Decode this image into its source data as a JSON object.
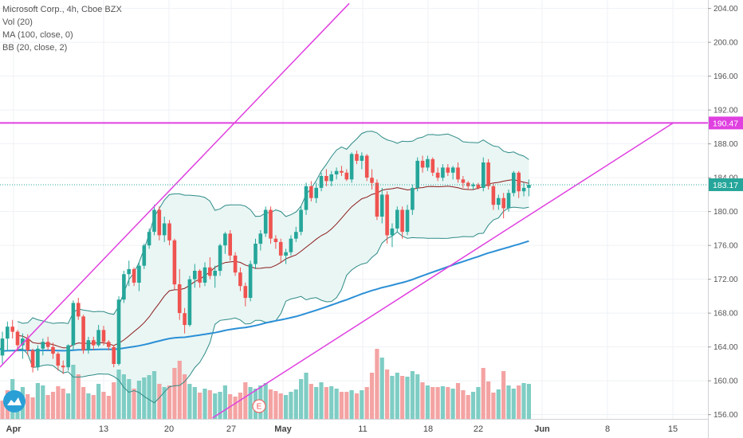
{
  "legend": {
    "title": "Microsoft Corp., 4h, Cboe BZX",
    "vol": "Vol (20)",
    "ma": "MA (100, close, 0)",
    "bb": "BB (20, close, 2)"
  },
  "colors": {
    "up": "#26a69a",
    "down": "#ef5350",
    "vol_up": "#7fcdc4",
    "vol_down": "#f4a3a3",
    "ma100": "#2b8fd6",
    "bb_mid": "#8b1a1a",
    "bb_band": "#2e8b87",
    "bb_fill": "#e9f6f4",
    "trend": "#e040e0",
    "grid": "#eef1f5",
    "last_price": "#26a69a"
  },
  "chart_data": {
    "type": "candlestick",
    "title": "Microsoft Corp., 4h, Cboe BZX",
    "ylim": [
      155.5,
      205
    ],
    "y_ticks": [
      "156.00",
      "160.00",
      "164.00",
      "168.00",
      "172.00",
      "176.00",
      "180.00",
      "184.00",
      "188.00",
      "192.00",
      "196.00",
      "200.00",
      "204.00"
    ],
    "x_ticks": [
      "Apr",
      "13",
      "20",
      "27",
      "May",
      "11",
      "18",
      "22",
      "Jun",
      "8",
      "15"
    ],
    "price_labels": {
      "resistance": "190.47",
      "last": "183.17"
    },
    "event_marker": "E",
    "candles": [
      [
        163.0,
        165.8,
        162.0,
        165.0
      ],
      [
        165.0,
        167.0,
        163.5,
        166.4
      ],
      [
        166.4,
        167.2,
        165.0,
        165.8
      ],
      [
        165.8,
        166.0,
        163.5,
        164.2
      ],
      [
        164.2,
        165.6,
        162.6,
        165.0
      ],
      [
        165.0,
        165.5,
        163.0,
        163.6
      ],
      [
        163.6,
        163.8,
        161.0,
        161.6
      ],
      [
        161.6,
        164.2,
        161.2,
        163.8
      ],
      [
        163.8,
        165.0,
        163.0,
        164.6
      ],
      [
        164.6,
        165.2,
        163.6,
        164.0
      ],
      [
        164.0,
        164.5,
        162.6,
        163.2
      ],
      [
        163.2,
        163.4,
        161.2,
        161.8
      ],
      [
        161.8,
        162.4,
        160.8,
        161.6
      ],
      [
        161.6,
        164.3,
        161.2,
        164.2
      ],
      [
        164.2,
        169.5,
        163.6,
        169.2
      ],
      [
        169.2,
        169.8,
        167.2,
        167.6
      ],
      [
        167.6,
        167.8,
        163.2,
        163.6
      ],
      [
        163.6,
        165.2,
        163.2,
        164.8
      ],
      [
        164.8,
        165.2,
        163.6,
        164.2
      ],
      [
        164.2,
        166.6,
        164.0,
        166.0
      ],
      [
        166.0,
        166.5,
        164.2,
        164.6
      ],
      [
        164.6,
        164.8,
        163.6,
        164.0
      ],
      [
        164.0,
        164.2,
        161.6,
        162.0
      ],
      [
        162.0,
        170.0,
        161.8,
        169.6
      ],
      [
        169.6,
        173.0,
        169.2,
        172.6
      ],
      [
        172.6,
        174.2,
        171.2,
        173.2
      ],
      [
        173.2,
        173.4,
        171.2,
        171.6
      ],
      [
        171.6,
        174.0,
        170.6,
        173.6
      ],
      [
        173.6,
        176.2,
        173.2,
        176.0
      ],
      [
        176.0,
        178.0,
        175.6,
        177.6
      ],
      [
        177.6,
        180.8,
        177.2,
        180.2
      ],
      [
        180.2,
        180.6,
        176.6,
        177.2
      ],
      [
        177.2,
        179.4,
        176.4,
        178.6
      ],
      [
        178.6,
        179.0,
        176.0,
        176.6
      ],
      [
        176.6,
        176.8,
        170.8,
        171.4
      ],
      [
        171.4,
        173.2,
        167.2,
        168.0
      ],
      [
        168.0,
        168.6,
        165.6,
        166.6
      ],
      [
        166.6,
        172.4,
        166.4,
        172.0
      ],
      [
        172.0,
        173.8,
        171.0,
        173.0
      ],
      [
        173.0,
        173.2,
        171.0,
        171.6
      ],
      [
        171.6,
        174.0,
        171.2,
        173.4
      ],
      [
        173.4,
        174.6,
        172.0,
        172.4
      ],
      [
        172.4,
        173.6,
        171.0,
        173.0
      ],
      [
        173.0,
        176.2,
        172.4,
        176.0
      ],
      [
        176.0,
        177.6,
        175.0,
        177.4
      ],
      [
        177.4,
        177.8,
        174.2,
        174.8
      ],
      [
        174.8,
        175.2,
        172.4,
        172.8
      ],
      [
        172.8,
        173.4,
        170.6,
        171.2
      ],
      [
        171.2,
        171.6,
        168.8,
        169.8
      ],
      [
        169.8,
        174.2,
        169.4,
        173.8
      ],
      [
        173.8,
        176.8,
        173.2,
        176.2
      ],
      [
        176.2,
        177.8,
        175.4,
        177.4
      ],
      [
        177.4,
        180.6,
        177.0,
        180.2
      ],
      [
        180.2,
        180.6,
        176.2,
        176.8
      ],
      [
        176.8,
        177.2,
        175.6,
        176.4
      ],
      [
        176.4,
        176.8,
        174.0,
        174.8
      ],
      [
        174.8,
        175.6,
        173.8,
        175.2
      ],
      [
        175.2,
        177.2,
        174.8,
        176.8
      ],
      [
        176.8,
        178.2,
        176.4,
        177.6
      ],
      [
        177.6,
        180.6,
        177.2,
        180.2
      ],
      [
        180.2,
        183.4,
        179.6,
        183.0
      ],
      [
        183.0,
        183.6,
        181.2,
        181.6
      ],
      [
        181.6,
        183.4,
        181.0,
        182.8
      ],
      [
        182.8,
        184.6,
        182.4,
        184.2
      ],
      [
        184.2,
        185.0,
        183.0,
        183.6
      ],
      [
        183.6,
        184.8,
        183.0,
        184.4
      ],
      [
        184.4,
        185.2,
        183.8,
        184.8
      ],
      [
        184.8,
        185.4,
        184.2,
        184.6
      ],
      [
        184.6,
        185.0,
        183.6,
        183.8
      ],
      [
        183.8,
        187.0,
        183.4,
        186.8
      ],
      [
        186.8,
        187.2,
        185.6,
        186.0
      ],
      [
        186.0,
        187.0,
        185.0,
        186.6
      ],
      [
        186.6,
        186.8,
        183.6,
        184.0
      ],
      [
        184.0,
        185.0,
        182.6,
        183.4
      ],
      [
        183.4,
        183.8,
        179.0,
        179.4
      ],
      [
        179.4,
        182.8,
        178.6,
        182.0
      ],
      [
        182.0,
        182.4,
        176.2,
        177.2
      ],
      [
        177.2,
        178.6,
        175.8,
        178.0
      ],
      [
        178.0,
        180.6,
        177.6,
        180.2
      ],
      [
        180.2,
        180.6,
        176.8,
        177.6
      ],
      [
        177.6,
        180.8,
        177.2,
        180.2
      ],
      [
        180.2,
        183.2,
        179.6,
        182.8
      ],
      [
        182.8,
        186.4,
        182.4,
        186.0
      ],
      [
        186.0,
        186.6,
        184.6,
        185.2
      ],
      [
        185.2,
        186.6,
        184.8,
        186.2
      ],
      [
        186.2,
        186.4,
        184.2,
        184.6
      ],
      [
        184.6,
        185.2,
        183.6,
        184.0
      ],
      [
        184.0,
        185.6,
        183.6,
        185.2
      ],
      [
        185.2,
        185.6,
        184.2,
        184.6
      ],
      [
        184.6,
        185.4,
        183.8,
        185.2
      ],
      [
        185.2,
        185.8,
        183.4,
        183.8
      ],
      [
        183.8,
        184.2,
        182.8,
        183.4
      ],
      [
        183.4,
        183.6,
        182.6,
        183.0
      ],
      [
        183.0,
        183.4,
        182.6,
        183.2
      ],
      [
        183.2,
        183.4,
        182.6,
        182.8
      ],
      [
        182.8,
        186.4,
        182.4,
        185.8
      ],
      [
        185.8,
        186.2,
        182.6,
        183.0
      ],
      [
        183.0,
        183.4,
        180.2,
        180.8
      ],
      [
        180.8,
        182.0,
        180.2,
        181.6
      ],
      [
        181.6,
        182.2,
        179.2,
        180.4
      ],
      [
        180.4,
        182.6,
        180.0,
        182.2
      ],
      [
        182.2,
        184.8,
        181.8,
        184.6
      ],
      [
        184.6,
        184.8,
        181.6,
        182.4
      ],
      [
        182.4,
        183.4,
        181.8,
        182.8
      ],
      [
        182.8,
        183.8,
        181.8,
        183.17
      ]
    ],
    "volume": [
      [
        23,
        0
      ],
      [
        36,
        0
      ],
      [
        50,
        1
      ],
      [
        35,
        1
      ],
      [
        40,
        1
      ],
      [
        31,
        0
      ],
      [
        27,
        0
      ],
      [
        45,
        1
      ],
      [
        42,
        1
      ],
      [
        30,
        0
      ],
      [
        34,
        0
      ],
      [
        41,
        0
      ],
      [
        38,
        0
      ],
      [
        32,
        1
      ],
      [
        68,
        1
      ],
      [
        56,
        0
      ],
      [
        40,
        0
      ],
      [
        32,
        1
      ],
      [
        30,
        0
      ],
      [
        44,
        1
      ],
      [
        34,
        0
      ],
      [
        29,
        0
      ],
      [
        46,
        0
      ],
      [
        62,
        1
      ],
      [
        56,
        1
      ],
      [
        50,
        1
      ],
      [
        38,
        0
      ],
      [
        48,
        1
      ],
      [
        52,
        1
      ],
      [
        55,
        1
      ],
      [
        60,
        1
      ],
      [
        44,
        0
      ],
      [
        40,
        1
      ],
      [
        42,
        0
      ],
      [
        64,
        0
      ],
      [
        73,
        0
      ],
      [
        56,
        0
      ],
      [
        44,
        1
      ],
      [
        40,
        1
      ],
      [
        33,
        0
      ],
      [
        38,
        1
      ],
      [
        36,
        0
      ],
      [
        32,
        1
      ],
      [
        34,
        1
      ],
      [
        42,
        1
      ],
      [
        31,
        0
      ],
      [
        28,
        0
      ],
      [
        33,
        0
      ],
      [
        46,
        0
      ],
      [
        40,
        1
      ],
      [
        38,
        1
      ],
      [
        42,
        1
      ],
      [
        45,
        1
      ],
      [
        37,
        0
      ],
      [
        35,
        0
      ],
      [
        32,
        0
      ],
      [
        30,
        1
      ],
      [
        34,
        1
      ],
      [
        37,
        1
      ],
      [
        50,
        1
      ],
      [
        58,
        1
      ],
      [
        44,
        0
      ],
      [
        40,
        1
      ],
      [
        46,
        1
      ],
      [
        40,
        0
      ],
      [
        41,
        1
      ],
      [
        38,
        1
      ],
      [
        34,
        0
      ],
      [
        34,
        0
      ],
      [
        36,
        1
      ],
      [
        32,
        0
      ],
      [
        36,
        1
      ],
      [
        40,
        0
      ],
      [
        58,
        0
      ],
      [
        88,
        0
      ],
      [
        77,
        1
      ],
      [
        62,
        0
      ],
      [
        54,
        1
      ],
      [
        58,
        1
      ],
      [
        54,
        0
      ],
      [
        53,
        1
      ],
      [
        60,
        1
      ],
      [
        56,
        1
      ],
      [
        46,
        0
      ],
      [
        42,
        1
      ],
      [
        40,
        0
      ],
      [
        40,
        0
      ],
      [
        41,
        1
      ],
      [
        40,
        0
      ],
      [
        38,
        1
      ],
      [
        45,
        0
      ],
      [
        36,
        0
      ],
      [
        30,
        0
      ],
      [
        34,
        1
      ],
      [
        40,
        1
      ],
      [
        64,
        0
      ],
      [
        47,
        0
      ],
      [
        33,
        0
      ],
      [
        37,
        1
      ],
      [
        60,
        0
      ],
      [
        42,
        1
      ],
      [
        38,
        1
      ],
      [
        42,
        0
      ],
      [
        45,
        1
      ],
      [
        44,
        1
      ]
    ],
    "resistance_level": 190.47,
    "last_price": 183.17
  }
}
